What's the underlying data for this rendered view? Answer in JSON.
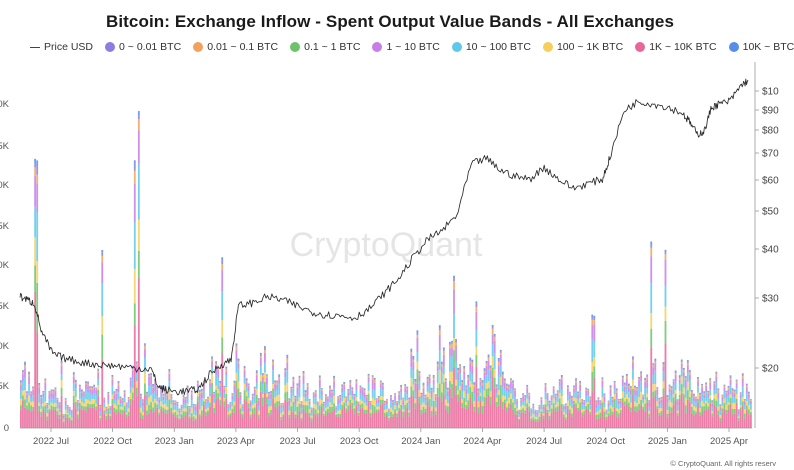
{
  "chart_data": {
    "type": "bar",
    "title": "Bitcoin: Exchange Inflow - Spent Output Value Bands - All Exchanges",
    "watermark": "CryptoQuant",
    "footer": "© CryptoQuant. All rights reserv",
    "stacked": true,
    "grid": false,
    "legend_position": "top",
    "x_ticks": [
      "2022 Jul",
      "2022 Oct",
      "2023 Jan",
      "2023 Apr",
      "2023 Jul",
      "2023 Oct",
      "2024 Jan",
      "2024 Apr",
      "2024 Jul",
      "2024 Oct",
      "2025 Jan",
      "2025 Apr"
    ],
    "y_left_ticks": [
      "0",
      "5K",
      "0K",
      "5K",
      "0K",
      "5K",
      "0K",
      "5K",
      "0K"
    ],
    "y_right_ticks": [
      "$10",
      "$90",
      "$80",
      "$70",
      "$60",
      "$50",
      "$40",
      "$30",
      "$20"
    ],
    "series": [
      {
        "name": "Price USD",
        "color": "#444444",
        "kind": "line"
      },
      {
        "name": "0 ~ 0.01 BTC",
        "color": "#8a7fe0"
      },
      {
        "name": "0.01 ~ 0.1 BTC",
        "color": "#f2a25c"
      },
      {
        "name": "0.1 ~ 1 BTC",
        "color": "#6cc36a"
      },
      {
        "name": "1 ~ 10 BTC",
        "color": "#c67ee8"
      },
      {
        "name": "10 ~ 100 BTC",
        "color": "#5ec8ea"
      },
      {
        "name": "100 ~ 1K BTC",
        "color": "#f4cf5a"
      },
      {
        "name": "1K ~ 10K BTC",
        "color": "#e8679a"
      },
      {
        "name": "10K ~ BTC",
        "color": "#5a8de8"
      }
    ],
    "price_path": [
      [
        0.0,
        21
      ],
      [
        0.01,
        20.5
      ],
      [
        0.02,
        19.8
      ],
      [
        0.03,
        15
      ],
      [
        0.045,
        11.5
      ],
      [
        0.06,
        10.8
      ],
      [
        0.08,
        10.2
      ],
      [
        0.1,
        9.8
      ],
      [
        0.12,
        9.6
      ],
      [
        0.14,
        9.4
      ],
      [
        0.16,
        9.1
      ],
      [
        0.18,
        9.0
      ],
      [
        0.19,
        6.0
      ],
      [
        0.2,
        5.5
      ],
      [
        0.215,
        5.2
      ],
      [
        0.23,
        5.3
      ],
      [
        0.245,
        5.6
      ],
      [
        0.26,
        8.0
      ],
      [
        0.275,
        9.6
      ],
      [
        0.29,
        10.5
      ],
      [
        0.3,
        19.5
      ],
      [
        0.32,
        20.0
      ],
      [
        0.34,
        21.0
      ],
      [
        0.36,
        20.5
      ],
      [
        0.38,
        19.5
      ],
      [
        0.4,
        18.5
      ],
      [
        0.42,
        18.0
      ],
      [
        0.44,
        17.8
      ],
      [
        0.46,
        17.5
      ],
      [
        0.48,
        19.0
      ],
      [
        0.5,
        21.5
      ],
      [
        0.52,
        24.0
      ],
      [
        0.54,
        27.5
      ],
      [
        0.56,
        30.5
      ],
      [
        0.58,
        32.0
      ],
      [
        0.6,
        34.5
      ],
      [
        0.62,
        43.0
      ],
      [
        0.64,
        44.0
      ],
      [
        0.66,
        42.0
      ],
      [
        0.68,
        41.0
      ],
      [
        0.7,
        40.5
      ],
      [
        0.72,
        42.5
      ],
      [
        0.74,
        40.5
      ],
      [
        0.76,
        39.0
      ],
      [
        0.78,
        39.8
      ],
      [
        0.8,
        40.5
      ],
      [
        0.81,
        44.0
      ],
      [
        0.83,
        52.0
      ],
      [
        0.85,
        53.5
      ],
      [
        0.87,
        53.0
      ],
      [
        0.89,
        52.5
      ],
      [
        0.91,
        51.5
      ],
      [
        0.92,
        50.0
      ],
      [
        0.93,
        48.0
      ],
      [
        0.94,
        48.5
      ],
      [
        0.95,
        52.5
      ],
      [
        0.96,
        53.0
      ],
      [
        0.975,
        53.5
      ],
      [
        0.99,
        56.0
      ],
      [
        1.0,
        57.0
      ]
    ]
  }
}
